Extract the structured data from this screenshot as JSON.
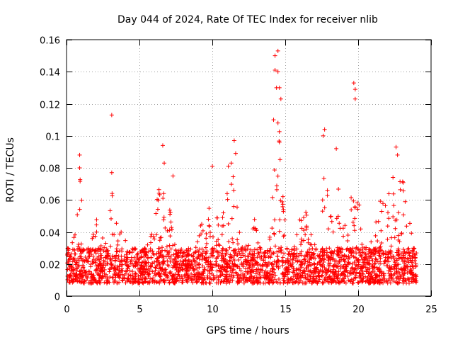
{
  "chart_data": {
    "type": "scatter",
    "title": "Day 044 of 2024, Rate Of TEC Index for receiver nlib",
    "xlabel": "GPS time / hours",
    "ylabel": "ROTI / TECUs",
    "xlim": [
      0,
      25
    ],
    "ylim": [
      0,
      0.16
    ],
    "x_ticks": [
      0,
      5,
      10,
      15,
      20,
      25
    ],
    "x_tick_labels": [
      "0",
      "5",
      "10",
      "15",
      "20",
      "25"
    ],
    "y_ticks": [
      0,
      0.02,
      0.04,
      0.06,
      0.08,
      0.1,
      0.12,
      0.14,
      0.16
    ],
    "y_tick_labels": [
      "0",
      "0.02",
      "0.04",
      "0.06",
      "0.08",
      "0.1",
      "0.12",
      "0.14",
      "0.16"
    ],
    "grid": true,
    "marker": "+",
    "color": "#ff0000",
    "series": [
      {
        "name": "ROTI",
        "x_range_hours": [
          0,
          24
        ],
        "typical_range": [
          0.008,
          0.03
        ],
        "notable_points": [
          {
            "x": 0.9,
            "y": 0.088
          },
          {
            "x": 0.9,
            "y": 0.08
          },
          {
            "x": 3.1,
            "y": 0.113
          },
          {
            "x": 3.1,
            "y": 0.077
          },
          {
            "x": 6.6,
            "y": 0.094
          },
          {
            "x": 6.7,
            "y": 0.083
          },
          {
            "x": 7.3,
            "y": 0.075
          },
          {
            "x": 10.0,
            "y": 0.081
          },
          {
            "x": 11.1,
            "y": 0.081
          },
          {
            "x": 11.5,
            "y": 0.097
          },
          {
            "x": 11.6,
            "y": 0.089
          },
          {
            "x": 14.3,
            "y": 0.15
          },
          {
            "x": 14.3,
            "y": 0.141
          },
          {
            "x": 14.5,
            "y": 0.153
          },
          {
            "x": 14.5,
            "y": 0.14
          },
          {
            "x": 14.4,
            "y": 0.13
          },
          {
            "x": 14.6,
            "y": 0.13
          },
          {
            "x": 14.7,
            "y": 0.123
          },
          {
            "x": 14.2,
            "y": 0.11
          },
          {
            "x": 14.5,
            "y": 0.108
          },
          {
            "x": 14.6,
            "y": 0.096
          },
          {
            "x": 17.7,
            "y": 0.104
          },
          {
            "x": 17.6,
            "y": 0.1
          },
          {
            "x": 18.5,
            "y": 0.092
          },
          {
            "x": 19.7,
            "y": 0.133
          },
          {
            "x": 19.8,
            "y": 0.129
          },
          {
            "x": 19.8,
            "y": 0.123
          },
          {
            "x": 22.6,
            "y": 0.093
          },
          {
            "x": 22.7,
            "y": 0.088
          }
        ]
      }
    ]
  }
}
